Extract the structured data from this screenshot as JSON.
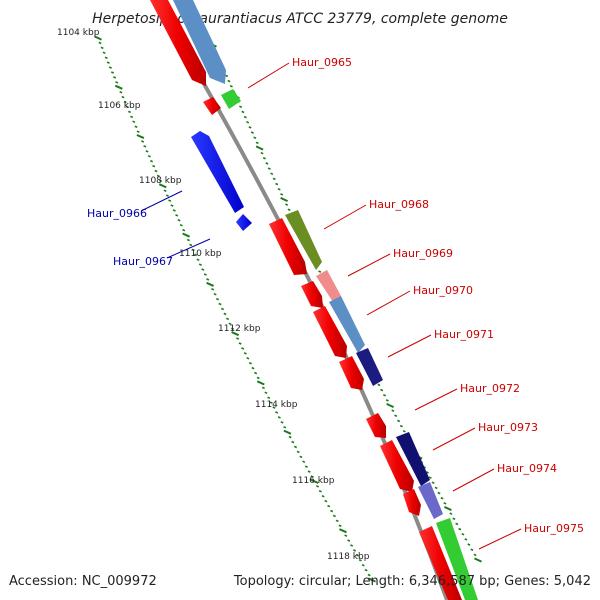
{
  "title": "Herpetosiphon aurantiacus ATCC 23779, complete genome",
  "scale_labels": [
    "1104 kbp",
    "1106 kbp",
    "1108 kbp",
    "1110 kbp",
    "1112 kbp",
    "1114 kbp",
    "1116 kbp",
    "1118 kbp"
  ],
  "gene_labels": [
    {
      "text": "Haur_0965",
      "color": "#cc0000"
    },
    {
      "text": "Haur_0966",
      "color": "#0000aa"
    },
    {
      "text": "Haur_0967",
      "color": "#0000aa"
    },
    {
      "text": "Haur_0968",
      "color": "#cc0000"
    },
    {
      "text": "Haur_0969",
      "color": "#cc0000"
    },
    {
      "text": "Haur_0970",
      "color": "#cc0000"
    },
    {
      "text": "Haur_0971",
      "color": "#cc0000"
    },
    {
      "text": "Haur_0972",
      "color": "#cc0000"
    },
    {
      "text": "Haur_0973",
      "color": "#cc0000"
    },
    {
      "text": "Haur_0974",
      "color": "#cc0000"
    },
    {
      "text": "Haur_0975",
      "color": "#cc0000"
    }
  ],
  "footer": {
    "accession": "Accession: NC_009972",
    "topology": "Topology: circular; Length: 6,346,587 bp; Genes: 5,042"
  },
  "colors": {
    "forward_gene": "#ff0000",
    "reverse_gene": "#0000ff",
    "backbone": "#888888",
    "scale_ticks": "#1a7a1a"
  }
}
